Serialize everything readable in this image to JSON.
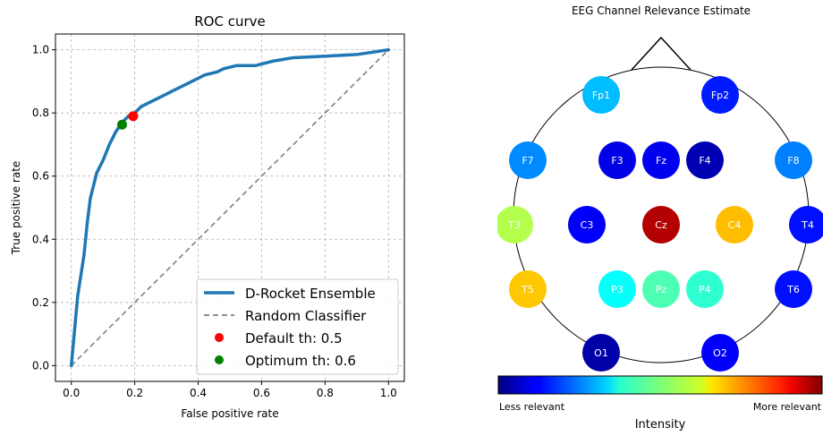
{
  "chart_data": [
    {
      "type": "line",
      "title": "ROC curve",
      "xlabel": "False positive rate",
      "ylabel": "True positive rate",
      "xlim": [
        -0.05,
        1.05
      ],
      "ylim": [
        -0.05,
        1.05
      ],
      "xticks": [
        "0.0",
        "0.2",
        "0.4",
        "0.6",
        "0.8",
        "1.0"
      ],
      "yticks": [
        "0.0",
        "0.2",
        "0.4",
        "0.6",
        "0.8",
        "1.0"
      ],
      "grid": true,
      "legend_position": "bottom-right",
      "series": [
        {
          "name": "D-Rocket Ensemble",
          "color": "#1f77b4",
          "x": [
            0.0,
            0.02,
            0.04,
            0.05,
            0.06,
            0.08,
            0.1,
            0.12,
            0.14,
            0.16,
            0.18,
            0.2,
            0.22,
            0.24,
            0.26,
            0.28,
            0.3,
            0.32,
            0.34,
            0.36,
            0.38,
            0.4,
            0.42,
            0.44,
            0.46,
            0.48,
            0.5,
            0.52,
            0.54,
            0.56,
            0.58,
            0.6,
            0.64,
            0.7,
            0.8,
            0.9,
            1.0
          ],
          "y": [
            0.0,
            0.22,
            0.35,
            0.45,
            0.53,
            0.61,
            0.65,
            0.7,
            0.74,
            0.77,
            0.79,
            0.8,
            0.82,
            0.83,
            0.84,
            0.85,
            0.86,
            0.87,
            0.88,
            0.89,
            0.9,
            0.91,
            0.92,
            0.925,
            0.93,
            0.94,
            0.945,
            0.95,
            0.95,
            0.95,
            0.95,
            0.955,
            0.965,
            0.975,
            0.98,
            0.985,
            1.0
          ]
        },
        {
          "name": "Random Classifier",
          "color": "#7f7f7f",
          "x": [
            0.0,
            1.0
          ],
          "y": [
            0.0,
            1.0
          ]
        }
      ],
      "points": [
        {
          "name": "Default th: 0.5",
          "x": 0.195,
          "y": 0.79,
          "color": "#ff0000"
        },
        {
          "name": "Optimum th: 0.6",
          "x": 0.16,
          "y": 0.763,
          "color": "#008000"
        }
      ]
    },
    {
      "type": "heatmap",
      "title": "EEG Channel Relevance Estimate",
      "colorbar": {
        "label": "Intensity",
        "min_label": "Less relevant",
        "max_label": "More relevant",
        "colormap": "jet"
      },
      "channels": [
        {
          "name": "Fp1",
          "value": 0.31
        },
        {
          "name": "Fp2",
          "value": 0.15
        },
        {
          "name": "F7",
          "value": 0.26
        },
        {
          "name": "F3",
          "value": 0.1
        },
        {
          "name": "Fz",
          "value": 0.11
        },
        {
          "name": "F4",
          "value": 0.05
        },
        {
          "name": "F8",
          "value": 0.25
        },
        {
          "name": "T3",
          "value": 0.55
        },
        {
          "name": "C3",
          "value": 0.12
        },
        {
          "name": "Cz",
          "value": 0.95
        },
        {
          "name": "C4",
          "value": 0.69
        },
        {
          "name": "T4",
          "value": 0.14
        },
        {
          "name": "T5",
          "value": 0.68
        },
        {
          "name": "P3",
          "value": 0.38
        },
        {
          "name": "Pz",
          "value": 0.45
        },
        {
          "name": "P4",
          "value": 0.42
        },
        {
          "name": "T6",
          "value": 0.14
        },
        {
          "name": "O1",
          "value": 0.04
        },
        {
          "name": "O2",
          "value": 0.12
        }
      ]
    }
  ]
}
